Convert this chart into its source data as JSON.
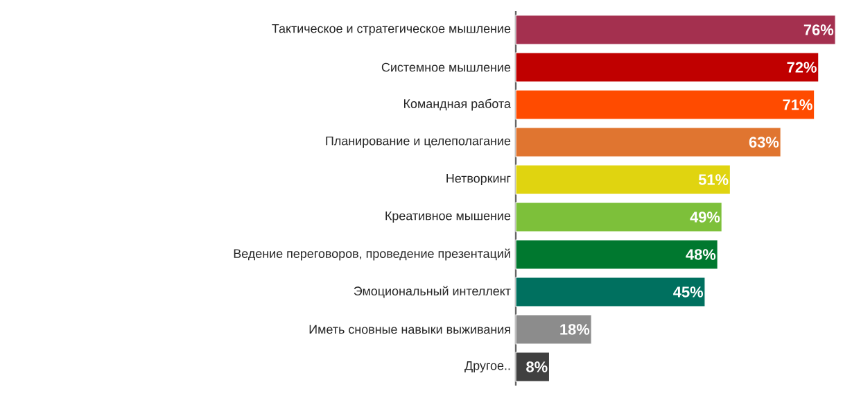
{
  "chart_data": {
    "type": "bar",
    "orientation": "horizontal",
    "categories": [
      "Тактическое и стратегическое мышление",
      "Системное мышление",
      "Командная работа",
      "Планирование и целеполагание",
      "Нетворкинг",
      "Креативное мышение",
      "Ведение переговоров, проведение презентаций",
      "Эмоциональный интеллект",
      "Иметь сновные навыки выживания",
      "Другое.."
    ],
    "values": [
      76,
      72,
      71,
      63,
      51,
      49,
      48,
      45,
      18,
      8
    ],
    "value_labels": [
      "76%",
      "72%",
      "71%",
      "63%",
      "51%",
      "49%",
      "48%",
      "45%",
      "18%",
      "8%"
    ],
    "colors": [
      "#a4304f",
      "#c00000",
      "#ff4b00",
      "#e07530",
      "#e0d410",
      "#7dc03a",
      "#00782f",
      "#00705f",
      "#8c8c8c",
      "#404040"
    ]
  }
}
